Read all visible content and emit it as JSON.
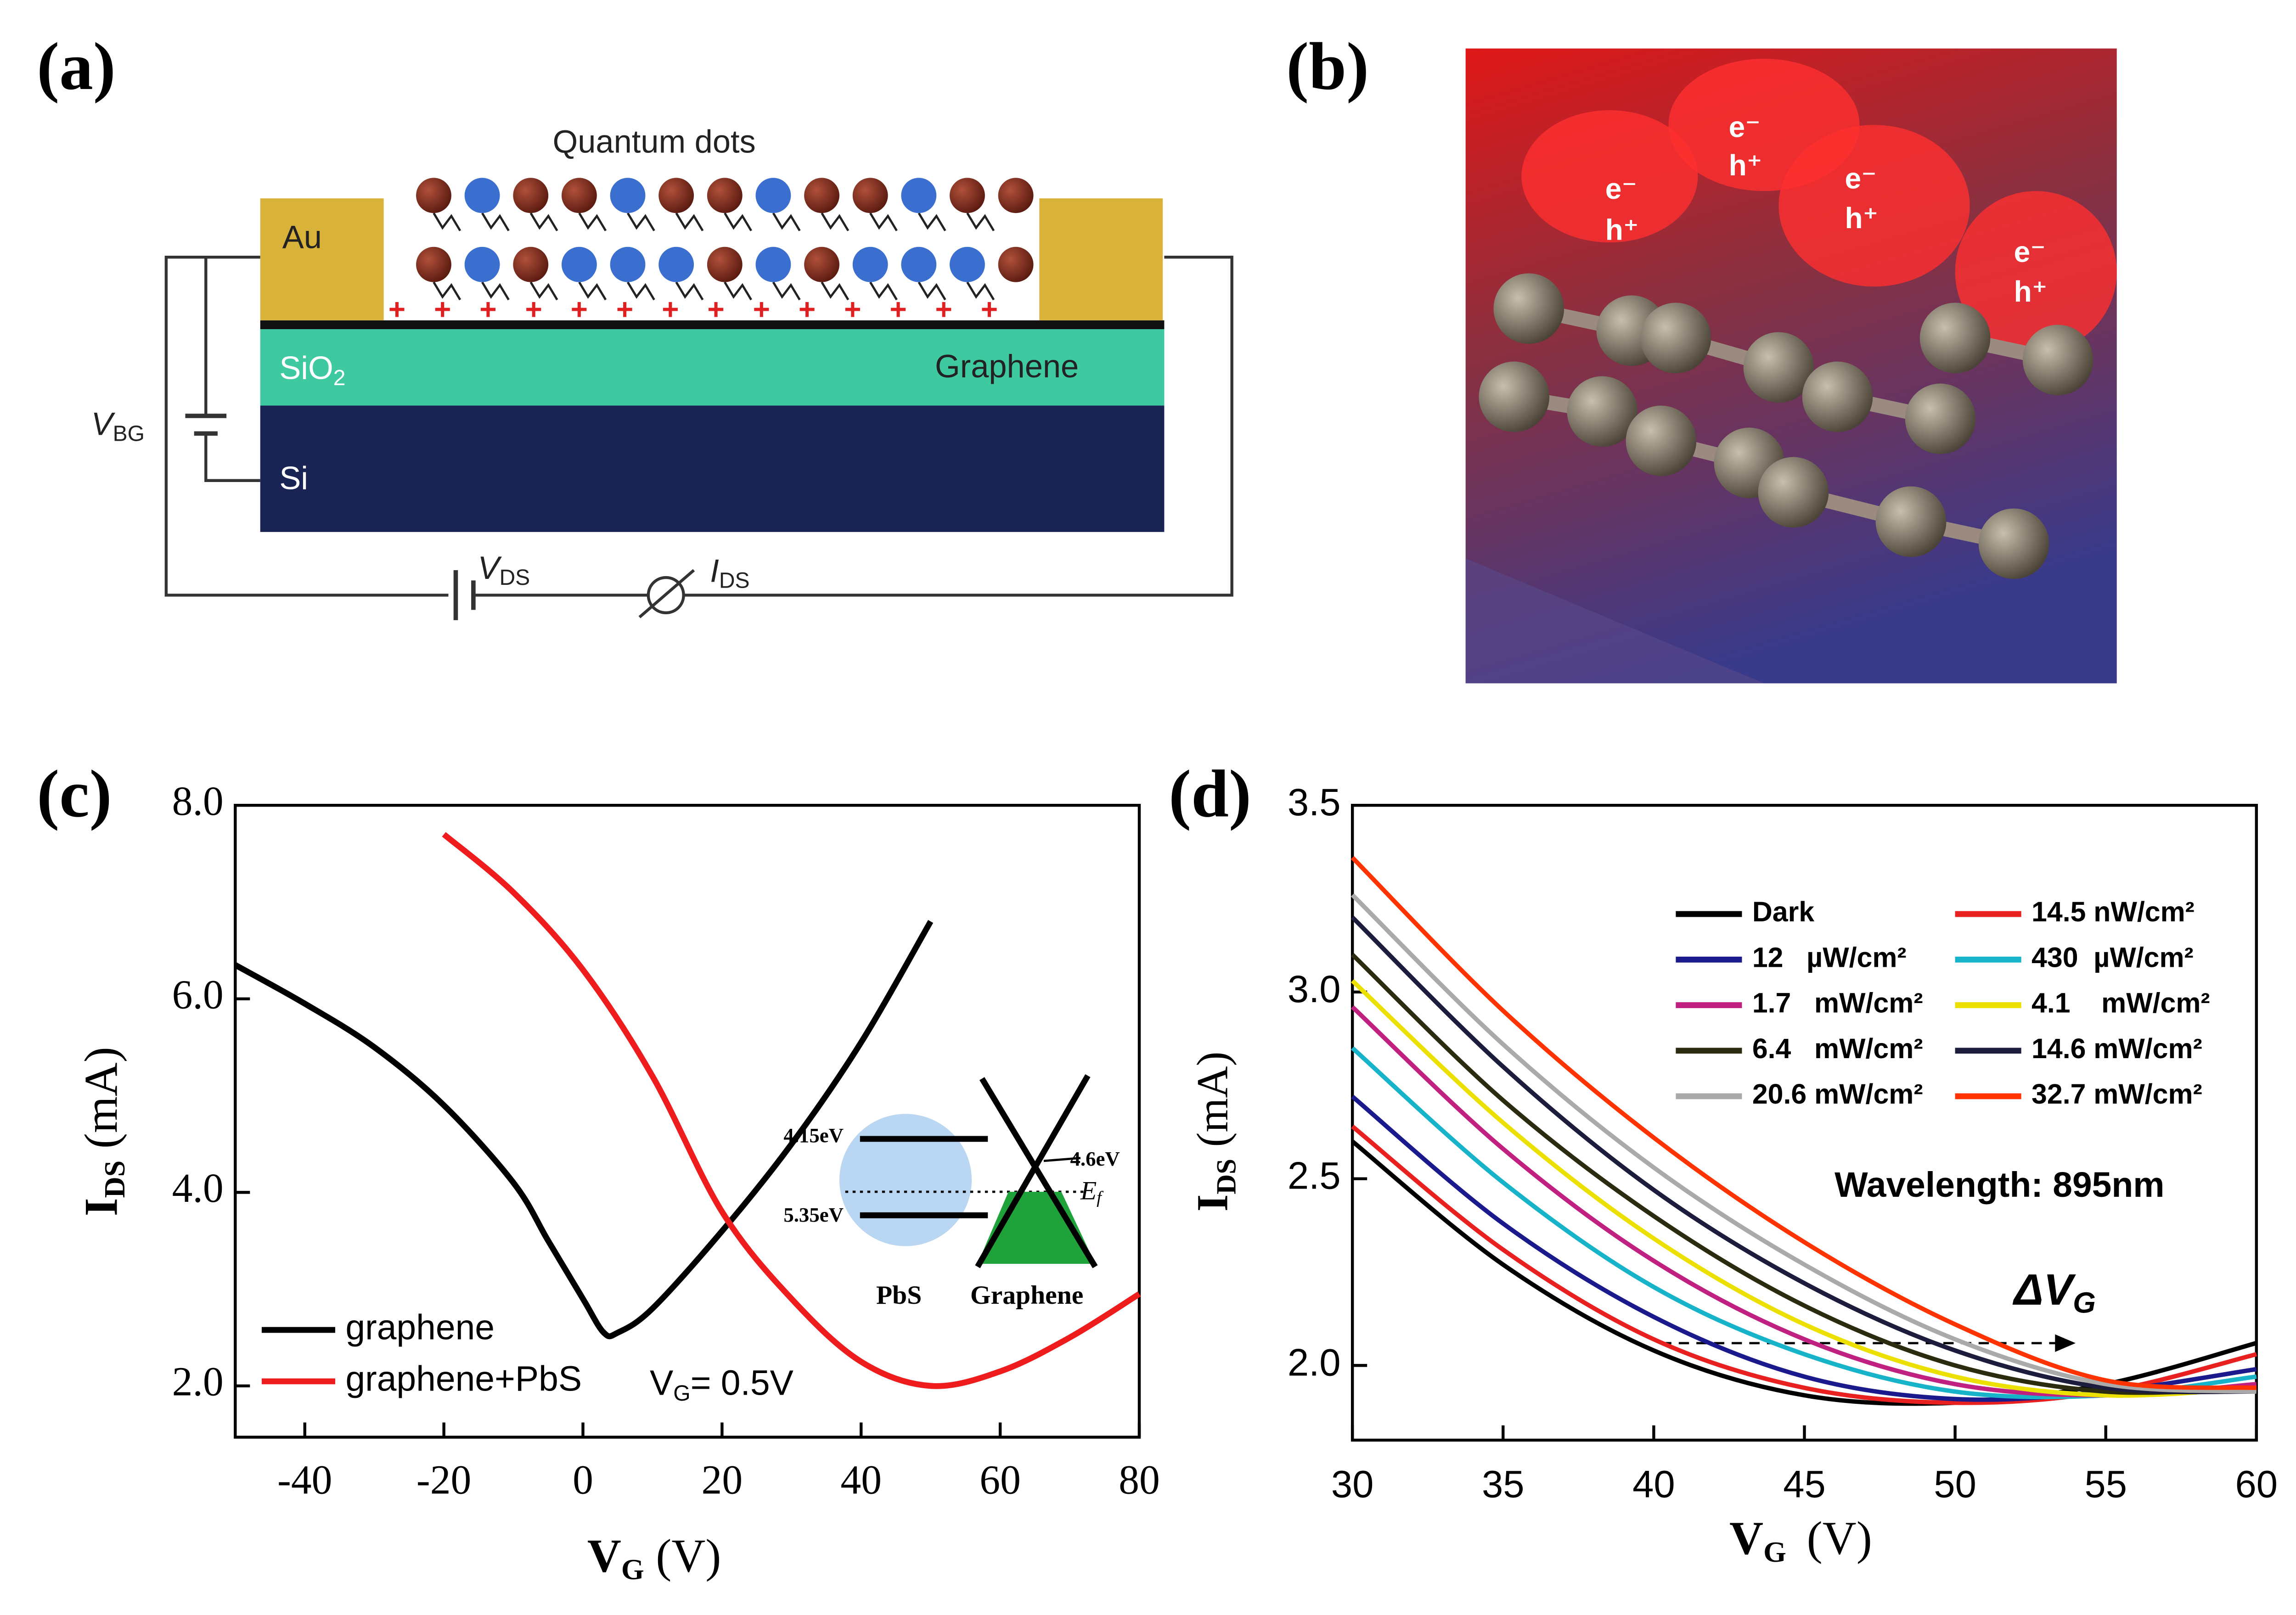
{
  "panel_labels": [
    "(a)",
    "(b)",
    "(c)",
    "(d)"
  ],
  "panel_a": {
    "title": "Quantum dots",
    "au": "Au",
    "sio2": {
      "main": "SiO",
      "sub": "2"
    },
    "graphene": "Graphene",
    "si": "Si",
    "vbg": {
      "main": "V",
      "sub": "BG"
    },
    "vds": {
      "main": "V",
      "sub": "DS"
    },
    "ids": {
      "main": "I",
      "sub": "DS"
    }
  },
  "panel_b": {
    "carriers": [
      {
        "e": "e⁻",
        "h": "h⁺"
      },
      {
        "e": "e⁻",
        "h": "h⁺"
      },
      {
        "e": "e⁻",
        "h": "h⁺"
      },
      {
        "e": "e⁻",
        "h": "h⁺"
      }
    ]
  },
  "chart_data": [
    {
      "type": "line",
      "xlabel": {
        "main": "V",
        "sub": "G",
        "unit": "(V)"
      },
      "ylabel": {
        "main": "I",
        "sub": "DS",
        "unit": "(mA)"
      },
      "xlim": [
        -50,
        80
      ],
      "xticks": [
        -40,
        -20,
        0,
        20,
        40,
        60,
        80
      ],
      "ylim": [
        1.47,
        8.0
      ],
      "yticks": [
        {
          "value": 2,
          "label": "2.0"
        },
        {
          "value": 4,
          "label": "4.0"
        },
        {
          "value": 6,
          "label": "6.0"
        },
        {
          "value": 8,
          "label": "8.0"
        }
      ],
      "legend": "lower left",
      "series": [
        {
          "name": "graphene",
          "color": "#000000",
          "x": [
            -50,
            -40,
            -30,
            -20,
            -10,
            -5,
            0,
            3,
            5,
            10,
            20,
            30,
            40,
            50
          ],
          "values": [
            6.35,
            5.95,
            5.5,
            4.9,
            4.1,
            3.5,
            2.9,
            2.55,
            2.55,
            2.8,
            3.6,
            4.5,
            5.55,
            6.8
          ]
        },
        {
          "name": "graphene+PbS",
          "color": "#ee1c1c",
          "x": [
            -20,
            -10,
            0,
            10,
            20,
            30,
            40,
            50,
            60,
            70,
            80
          ],
          "values": [
            7.7,
            7.1,
            6.3,
            5.2,
            3.8,
            2.9,
            2.25,
            2.0,
            2.15,
            2.5,
            2.95
          ]
        }
      ],
      "annotation": {
        "main": "V",
        "sub": "G",
        "rest": "= 0.5V"
      },
      "inset": {
        "level_top": "4.15eV",
        "level_bottom": "5.35eV",
        "work_function": "4.6eV",
        "fermi": "E",
        "fermi_sub": "f",
        "left": "PbS",
        "right": "Graphene"
      }
    },
    {
      "type": "line",
      "xlabel": {
        "main": "V",
        "sub": "G",
        "unit": "(V)"
      },
      "ylabel": {
        "main": "I",
        "sub": "DS",
        "unit": "(mA)"
      },
      "xlim": [
        30,
        60
      ],
      "xticks": [
        30,
        35,
        40,
        45,
        50,
        55,
        60
      ],
      "ylim": [
        1.8,
        3.5
      ],
      "yticks": [
        {
          "value": 2,
          "label": "2.0"
        },
        {
          "value": 2.5,
          "label": "2.5"
        },
        {
          "value": 3,
          "label": "3.0"
        },
        {
          "value": 3.5,
          "label": "3.5"
        }
      ],
      "legend": "upper right",
      "x": [
        30,
        35,
        40,
        45,
        50,
        55,
        60
      ],
      "series": [
        {
          "name": "Dark",
          "color": "#000000",
          "values": [
            2.6,
            2.27,
            2.04,
            1.92,
            1.9,
            1.95,
            2.06
          ]
        },
        {
          "name": "14.5 nW/cm²",
          "color": "#e8201f",
          "values": [
            2.64,
            2.31,
            2.07,
            1.94,
            1.9,
            1.93,
            2.03
          ]
        },
        {
          "name": "12   µW/cm²",
          "color": "#1a1a8c",
          "values": [
            2.72,
            2.38,
            2.13,
            1.97,
            1.91,
            1.93,
            1.99
          ]
        },
        {
          "name": "430  µW/cm²",
          "color": "#17b3c9",
          "values": [
            2.85,
            2.49,
            2.21,
            2.03,
            1.93,
            1.92,
            1.97
          ]
        },
        {
          "name": "1.7   mW/cm²",
          "color": "#c0207f",
          "values": [
            2.96,
            2.58,
            2.28,
            2.07,
            1.95,
            1.92,
            1.95
          ]
        },
        {
          "name": "4.1    mW/cm²",
          "color": "#ece000",
          "values": [
            3.03,
            2.65,
            2.34,
            2.11,
            1.97,
            1.92,
            1.94
          ]
        },
        {
          "name": "6.4   mW/cm²",
          "color": "#2b2b10",
          "values": [
            3.1,
            2.71,
            2.4,
            2.16,
            2.0,
            1.93,
            1.94
          ]
        },
        {
          "name": "14.6 mW/cm²",
          "color": "#1c1c3c",
          "values": [
            3.2,
            2.8,
            2.47,
            2.22,
            2.04,
            1.94,
            1.93
          ]
        },
        {
          "name": "20.6 mW/cm²",
          "color": "#aaaaaa",
          "values": [
            3.26,
            2.86,
            2.53,
            2.27,
            2.07,
            1.95,
            1.93
          ]
        },
        {
          "name": "32.7 mW/cm²",
          "color": "#ff3300",
          "values": [
            3.36,
            2.95,
            2.61,
            2.33,
            2.11,
            1.96,
            1.94
          ]
        }
      ],
      "annotation": "Wavelength:  895nm",
      "shift": {
        "main": "ΔV",
        "sub": "G"
      }
    }
  ]
}
